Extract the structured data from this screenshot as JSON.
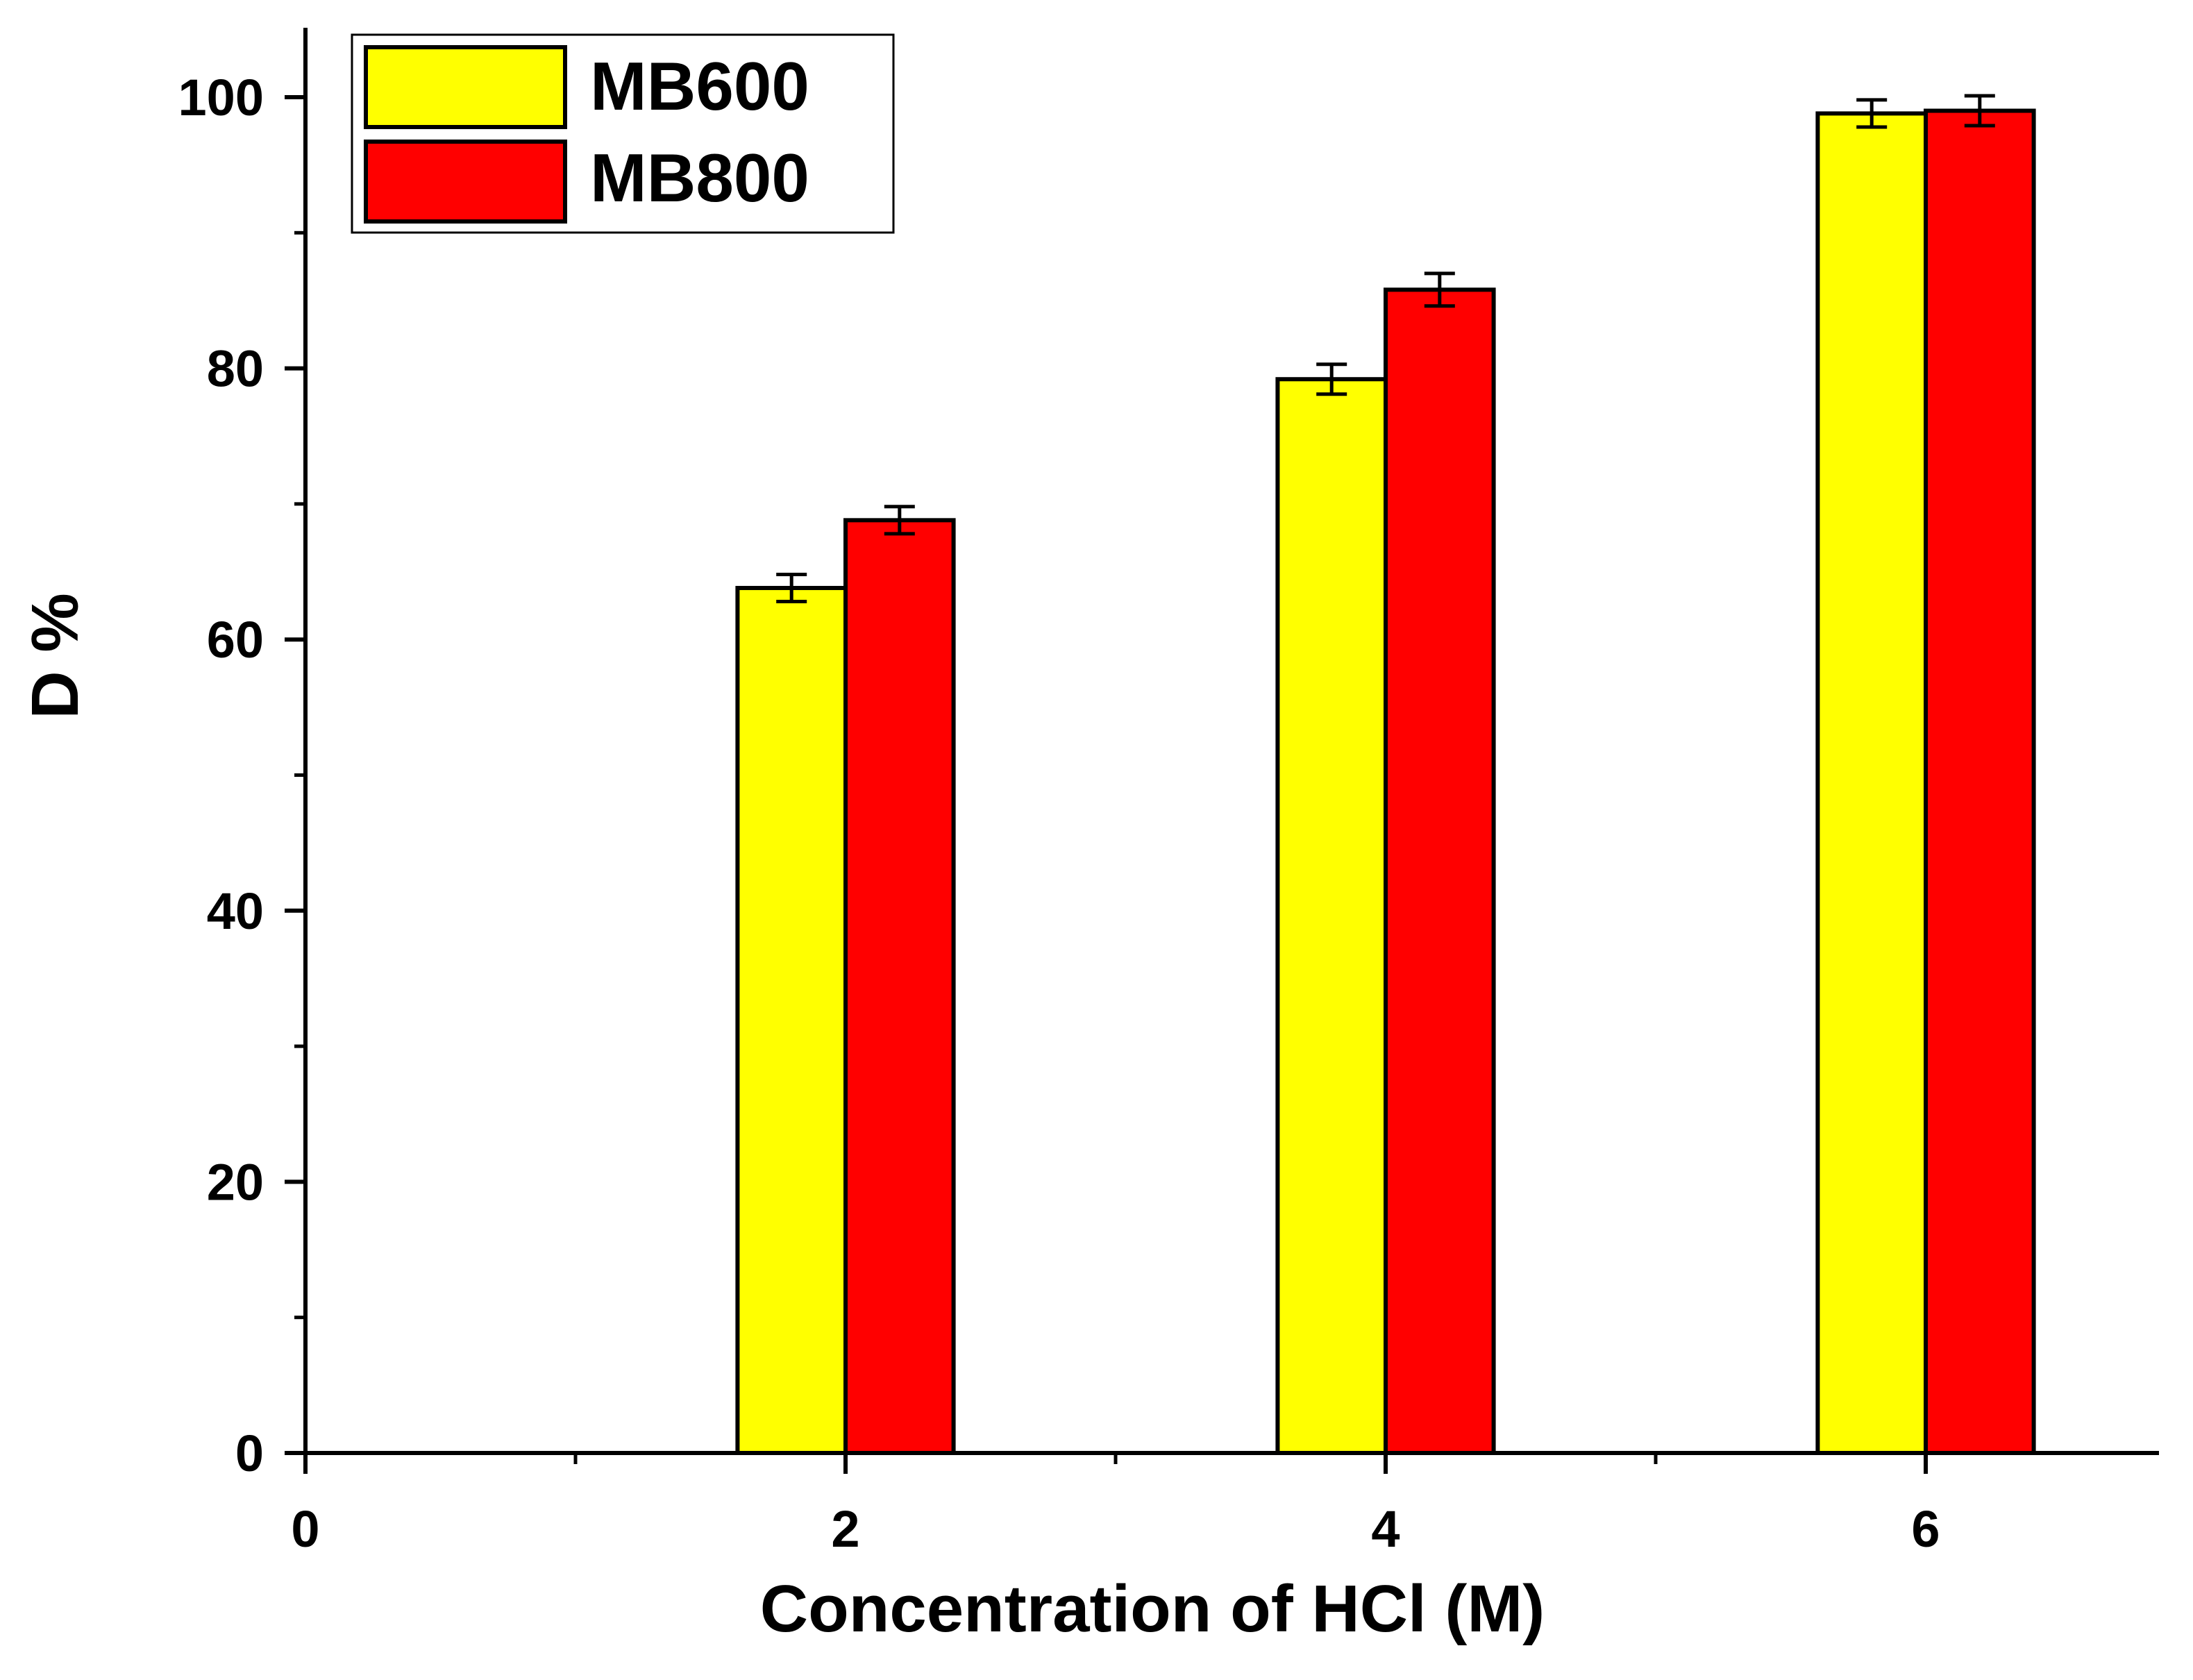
{
  "chart_data": {
    "type": "bar",
    "title": "",
    "xlabel": "Concentration of HCl (M)",
    "ylabel": "D %",
    "xlim": [
      0,
      6.8
    ],
    "ylim": [
      0,
      104
    ],
    "x_ticks": [
      0,
      2,
      4,
      6
    ],
    "x_minor_ticks": [
      1,
      3,
      5
    ],
    "y_ticks": [
      0,
      20,
      40,
      60,
      80,
      100
    ],
    "y_minor_ticks": [
      10,
      30,
      50,
      70,
      90
    ],
    "bar_width": 0.8,
    "categories": [
      2,
      4,
      6
    ],
    "series": [
      {
        "name": "MB600",
        "color": "#ffff00",
        "values": [
          63.8,
          79.2,
          98.8
        ],
        "errors": [
          1.0,
          1.1,
          1.0
        ]
      },
      {
        "name": "MB800",
        "color": "#ff0000",
        "values": [
          68.8,
          85.8,
          99.0
        ],
        "errors": [
          1.0,
          1.2,
          1.1
        ]
      }
    ],
    "legend": {
      "position": "top-left"
    },
    "grid": false
  }
}
